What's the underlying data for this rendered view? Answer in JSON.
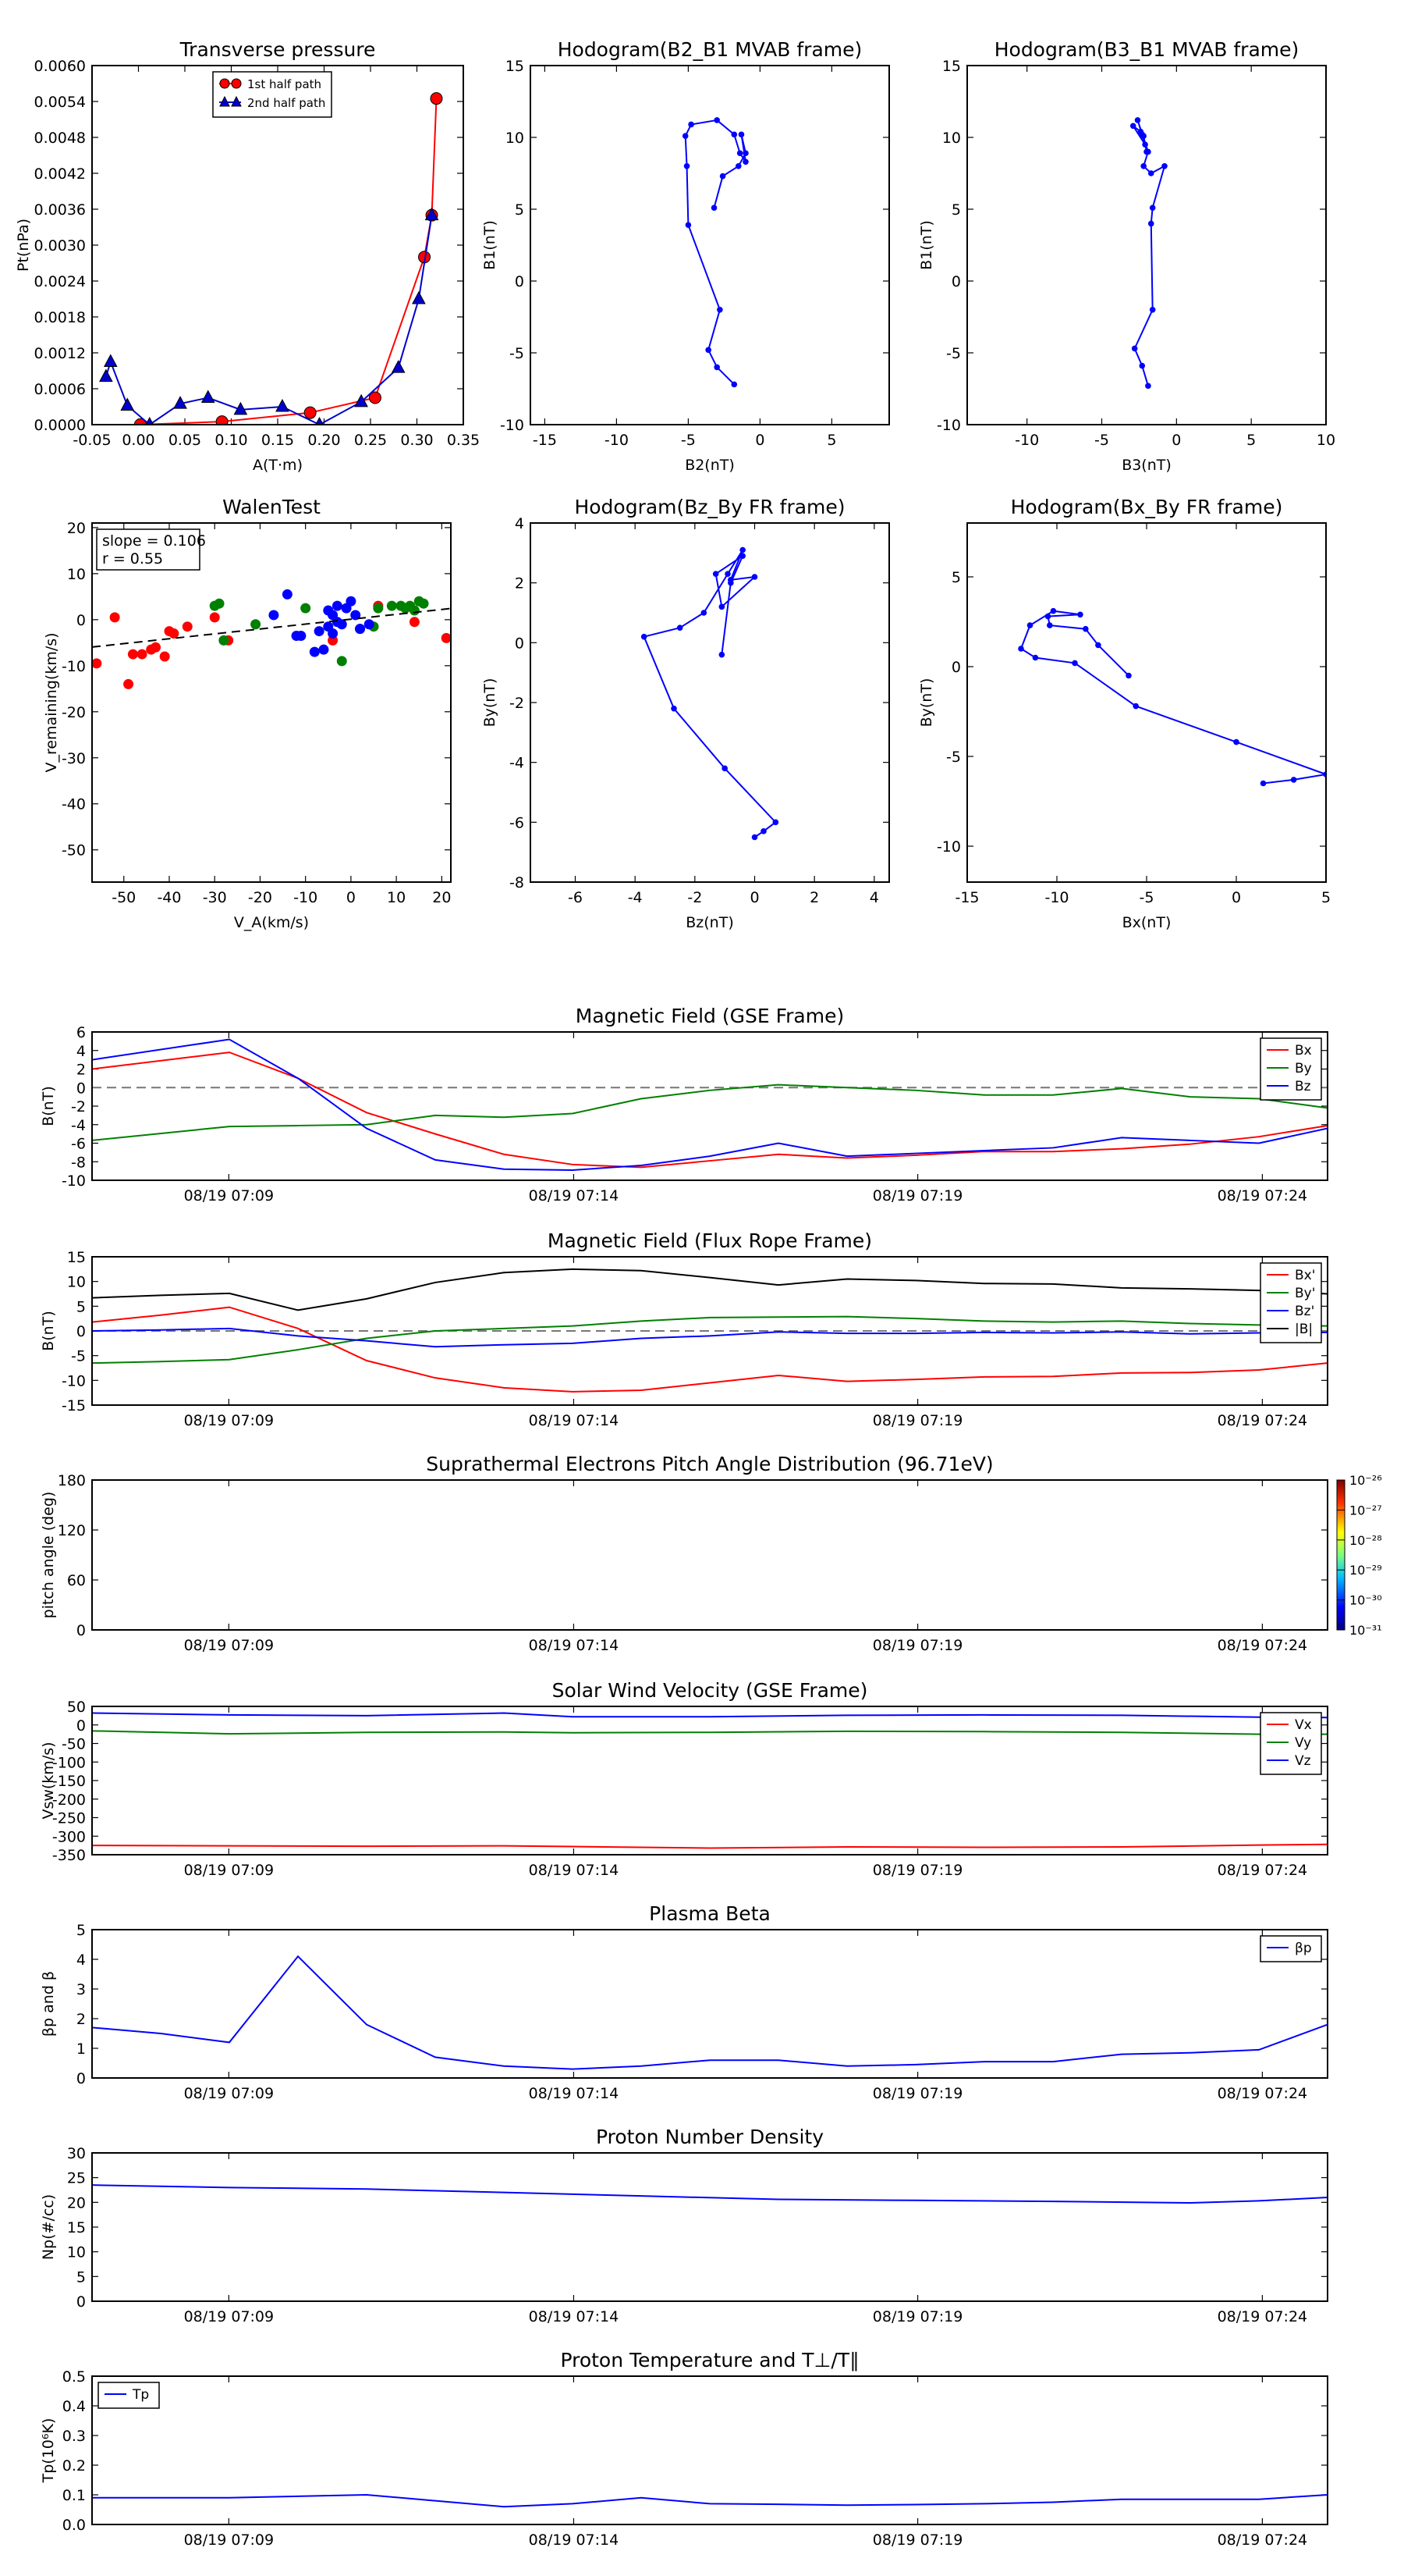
{
  "chart_data": [
    {
      "id": "tp",
      "type": "line",
      "title": "Transverse pressure",
      "xlabel": "A(T·m)",
      "ylabel": "Pt(nPa)",
      "xlim": [
        -0.05,
        0.35
      ],
      "ylim": [
        0,
        0.006
      ],
      "xticks": [
        "-0.05",
        "0.00",
        "0.05",
        "0.10",
        "0.15",
        "0.20",
        "0.25",
        "0.30",
        "0.35"
      ],
      "yticks": [
        "0.0000",
        "0.0006",
        "0.0012",
        "0.0018",
        "0.0024",
        "0.0030",
        "0.0036",
        "0.0042",
        "0.0048",
        "0.0054",
        "0.0060"
      ],
      "legend": "upper-center",
      "series": [
        {
          "name": "1st half path",
          "color": "#ff0000",
          "marker": "circle",
          "x": [
            0.002,
            0.09,
            0.185,
            0.255,
            0.308,
            0.316,
            0.321
          ],
          "y": [
            0.0,
            5e-05,
            0.0002,
            0.00045,
            0.0028,
            0.0035,
            0.00545
          ]
        },
        {
          "name": "2nd half path",
          "color": "#0000cc",
          "marker": "triangle",
          "x": [
            -0.035,
            -0.03,
            -0.012,
            0.012,
            0.045,
            0.075,
            0.11,
            0.155,
            0.195,
            0.24,
            0.28,
            0.302,
            0.316
          ],
          "y": [
            0.0008,
            0.00105,
            0.00032,
            0.0,
            0.00035,
            0.00045,
            0.00025,
            0.0003,
            0.0,
            0.00038,
            0.00095,
            0.0021,
            0.0035
          ]
        }
      ]
    },
    {
      "id": "h1",
      "type": "line",
      "title": "Hodogram(B2_B1 MVAB frame)",
      "xlabel": "B2(nT)",
      "ylabel": "B1(nT)",
      "xlim": [
        -16,
        9
      ],
      "ylim": [
        -10,
        15
      ],
      "xticks": [
        "-15",
        "-10",
        "-5",
        "0",
        "5"
      ],
      "yticks": [
        "-10",
        "-5",
        "0",
        "5",
        "10",
        "15"
      ],
      "series": [
        {
          "color": "#0000ff",
          "marker": "dot",
          "x": [
            -1.8,
            -3.0,
            -3.6,
            -2.8,
            -5.0,
            -5.1,
            -5.2,
            -4.8,
            -3.0,
            -1.8,
            -1.4,
            -1.0,
            -1.3,
            -1.0,
            -1.5,
            -2.6,
            -3.2
          ],
          "y": [
            -7.2,
            -6.0,
            -4.8,
            -2.0,
            3.9,
            8.0,
            10.1,
            10.9,
            11.2,
            10.2,
            8.9,
            8.3,
            10.2,
            8.9,
            8.0,
            7.3,
            5.1
          ]
        }
      ]
    },
    {
      "id": "h2",
      "type": "line",
      "title": "Hodogram(B3_B1 MVAB frame)",
      "xlabel": "B3(nT)",
      "ylabel": "B1(nT)",
      "xlim": [
        -14,
        10
      ],
      "ylim": [
        -10,
        15
      ],
      "xticks": [
        "-10",
        "-5",
        "0",
        "5",
        "10"
      ],
      "yticks": [
        "-10",
        "-5",
        "0",
        "5",
        "10",
        "15"
      ],
      "series": [
        {
          "color": "#0000ff",
          "marker": "dot",
          "x": [
            -1.9,
            -2.3,
            -2.8,
            -1.6,
            -1.7,
            -1.6,
            -0.8,
            -1.7,
            -2.2,
            -1.9,
            -2.6,
            -2.3,
            -2.1,
            -2.9,
            -2.4,
            -2.2,
            -2.0
          ],
          "y": [
            -7.3,
            -5.9,
            -4.7,
            -2.0,
            4.0,
            5.1,
            8.0,
            7.5,
            8.0,
            9.0,
            11.2,
            10.2,
            9.5,
            10.8,
            10.4,
            10.1,
            9.0
          ]
        }
      ]
    },
    {
      "id": "wt",
      "type": "scatter",
      "title": "WalenTest",
      "xlabel": "V_A(km/s)",
      "ylabel": "V_remaining(km/s)",
      "xlim": [
        -57,
        22
      ],
      "ylim": [
        -57,
        21
      ],
      "xticks": [
        "-50",
        "-40",
        "-30",
        "-20",
        "-10",
        "0",
        "10",
        "20"
      ],
      "yticks": [
        "-50",
        "-40",
        "-30",
        "-20",
        "-10",
        "0",
        "10",
        "20"
      ],
      "annotation": [
        "slope = 0.106",
        "r = 0.55"
      ],
      "fit": {
        "slope": 0.106,
        "intercept": 0.1
      },
      "series": [
        {
          "color": "#ff0000",
          "x": [
            -56,
            -52,
            -49,
            -48,
            -46,
            -44,
            -43,
            -41,
            -40,
            -39,
            -36,
            -30,
            -27,
            -4,
            6,
            14,
            21
          ],
          "y": [
            -9.5,
            0.5,
            -14,
            -7.5,
            -7.5,
            -6.5,
            -6,
            -8,
            -2.5,
            -3,
            -1.5,
            0.5,
            -4.5,
            -4.5,
            3,
            -0.5,
            -4
          ]
        },
        {
          "color": "#008000",
          "x": [
            -30,
            -29,
            -28,
            -21,
            -10,
            -2,
            2,
            5,
            6,
            9,
            11,
            12,
            13,
            14,
            15,
            16
          ],
          "y": [
            3,
            3.5,
            -4.5,
            -1,
            2.5,
            -9,
            -2,
            -1.5,
            2.5,
            3,
            3,
            2.5,
            3,
            2,
            4,
            3.5
          ]
        },
        {
          "color": "#0000ff",
          "x": [
            -17,
            -14,
            -12,
            -11,
            -8,
            -7,
            -6,
            -5,
            -5,
            -4,
            -4,
            -3,
            -3,
            -2,
            -1,
            0,
            1,
            2,
            4
          ],
          "y": [
            1,
            5.5,
            -3.5,
            -3.5,
            -7,
            -2.5,
            -6.5,
            2,
            -1.5,
            1,
            -3,
            3,
            -0.5,
            -1,
            2.5,
            4,
            1,
            -2,
            -1
          ]
        }
      ]
    },
    {
      "id": "h3",
      "type": "line",
      "title": "Hodogram(Bz_By FR frame)",
      "xlabel": "Bz(nT)",
      "ylabel": "By(nT)",
      "xlim": [
        -7.5,
        4.5
      ],
      "ylim": [
        -8,
        4
      ],
      "xticks": [
        "-6",
        "-4",
        "-2",
        "0",
        "2",
        "4"
      ],
      "yticks": [
        "-8",
        "-6",
        "-4",
        "-2",
        "0",
        "2",
        "4"
      ],
      "series": [
        {
          "color": "#0000ff",
          "marker": "dot",
          "x": [
            0.0,
            0.3,
            0.7,
            -1.0,
            -2.7,
            -3.7,
            -2.5,
            -1.7,
            -0.9,
            -0.4,
            -0.8,
            0.0,
            -1.1,
            -1.3,
            -0.4,
            -0.8,
            -1.1
          ],
          "y": [
            -6.5,
            -6.3,
            -6.0,
            -4.2,
            -2.2,
            0.2,
            0.5,
            1.0,
            2.3,
            3.1,
            2.1,
            2.2,
            1.2,
            2.3,
            2.9,
            2.0,
            -0.4
          ]
        }
      ]
    },
    {
      "id": "h4",
      "type": "line",
      "title": "Hodogram(Bx_By FR frame)",
      "xlabel": "Bx(nT)",
      "ylabel": "By(nT)",
      "xlim": [
        -15,
        5
      ],
      "ylim": [
        -12,
        8
      ],
      "xticks": [
        "-15",
        "-10",
        "-5",
        "0",
        "5"
      ],
      "yticks": [
        "-10",
        "-5",
        "0",
        "5"
      ],
      "series": [
        {
          "color": "#0000ff",
          "marker": "dot",
          "x": [
            1.5,
            3.2,
            5.0,
            0.0,
            -5.6,
            -9.0,
            -11.2,
            -12.0,
            -11.5,
            -10.2,
            -8.7,
            -10.5,
            -10.4,
            -8.4,
            -7.7,
            -6.0
          ],
          "y": [
            -6.5,
            -6.3,
            -6.0,
            -4.2,
            -2.2,
            0.2,
            0.5,
            1.0,
            2.3,
            3.1,
            2.9,
            2.8,
            2.3,
            2.1,
            1.2,
            -0.5
          ]
        }
      ]
    },
    {
      "id": "mf",
      "type": "line",
      "title": "Magnetic Field (GSE Frame)",
      "ylabel": "B(nT)",
      "xlim": [
        0,
        18
      ],
      "ylim": [
        -10,
        6
      ],
      "zero_line": true,
      "xticks": [
        "08/19 07:09",
        "08/19 07:14",
        "08/19 07:19",
        "08/19 07:24"
      ],
      "yticks": [
        "-10",
        "-8",
        "-6",
        "-4",
        "-2",
        "0",
        "2",
        "4",
        "6"
      ],
      "legend": "upper-right",
      "x": [
        0,
        2,
        3,
        4,
        5,
        6,
        7,
        8,
        9,
        10,
        11,
        12,
        13,
        14,
        15,
        16,
        17,
        18
      ],
      "series": [
        {
          "name": "Bx",
          "color": "#ff0000",
          "values": [
            2,
            3.8,
            1,
            -2.7,
            -5,
            -7.2,
            -8.3,
            -8.6,
            -7.9,
            -7.2,
            -7.6,
            -7.3,
            -6.9,
            -6.9,
            -6.6,
            -6.1,
            -5.3,
            -4.1
          ]
        },
        {
          "name": "By",
          "color": "#008000",
          "values": [
            -5.7,
            -4.2,
            -4.1,
            -4,
            -3,
            -3.2,
            -2.8,
            -1.2,
            -0.3,
            0.3,
            0,
            -0.3,
            -0.8,
            -0.8,
            -0.1,
            -1,
            -1.2,
            -2.2
          ]
        },
        {
          "name": "Bz",
          "color": "#0000ff",
          "values": [
            3,
            5.2,
            1,
            -4.4,
            -7.8,
            -8.8,
            -8.9,
            -8.4,
            -7.4,
            -6,
            -7.4,
            -7.1,
            -6.8,
            -6.5,
            -5.4,
            -5.7,
            -6,
            -4.4
          ]
        }
      ]
    },
    {
      "id": "mfr",
      "type": "line",
      "title": "Magnetic Field (Flux Rope Frame)",
      "ylabel": "B(nT)",
      "xlim": [
        0,
        18
      ],
      "ylim": [
        -15,
        15
      ],
      "zero_line": true,
      "xticks": [
        "08/19 07:09",
        "08/19 07:14",
        "08/19 07:19",
        "08/19 07:24"
      ],
      "yticks": [
        "-15",
        "-10",
        "-5",
        "0",
        "5",
        "10",
        "15"
      ],
      "legend": "upper-right",
      "x": [
        0,
        1,
        2,
        3,
        4,
        5,
        6,
        7,
        8,
        9,
        10,
        11,
        12,
        13,
        14,
        15,
        16,
        17,
        18
      ],
      "series": [
        {
          "name": "Bx'",
          "color": "#ff0000",
          "values": [
            1.8,
            3.2,
            4.8,
            0.5,
            -6,
            -9.5,
            -11.5,
            -12.3,
            -12,
            -10.5,
            -9,
            -10.2,
            -9.8,
            -9.3,
            -9.2,
            -8.5,
            -8.4,
            -7.9,
            -6.5
          ]
        },
        {
          "name": "By'",
          "color": "#008000",
          "values": [
            -6.5,
            -6.2,
            -5.8,
            -3.8,
            -1.5,
            0,
            0.5,
            1,
            2,
            2.7,
            2.8,
            2.9,
            2.5,
            2,
            1.8,
            2,
            1.5,
            1.2,
            1
          ]
        },
        {
          "name": "Bz'",
          "color": "#0000ff",
          "values": [
            0,
            0.2,
            0.5,
            -1,
            -2,
            -3.2,
            -2.8,
            -2.5,
            -1.5,
            -1,
            -0.2,
            -0.5,
            -0.5,
            -0.3,
            -0.4,
            -0.2,
            -0.6,
            -0.4,
            -0.3
          ]
        },
        {
          "name": "|B|",
          "color": "#000000",
          "values": [
            6.7,
            7.2,
            7.6,
            4.2,
            6.5,
            9.8,
            11.8,
            12.5,
            12.2,
            10.8,
            9.3,
            10.5,
            10.2,
            9.6,
            9.5,
            8.7,
            8.5,
            8.2,
            7.5
          ]
        }
      ]
    },
    {
      "id": "pad",
      "type": "heatmap",
      "title": "Suprathermal Electrons Pitch Angle Distribution (96.71eV)",
      "ylabel": "pitch angle (deg)",
      "ylim": [
        0,
        180
      ],
      "xticks": [
        "08/19 07:09",
        "08/19 07:14",
        "08/19 07:19",
        "08/19 07:24"
      ],
      "yticks": [
        "0",
        "60",
        "120",
        "180"
      ],
      "colorbar_labels": [
        "10⁻²⁶",
        "10⁻²⁷",
        "10⁻²⁸",
        "10⁻²⁹",
        "10⁻³⁰",
        "10⁻³¹"
      ]
    },
    {
      "id": "sw",
      "type": "line",
      "title": "Solar Wind Velocity (GSE Frame)",
      "ylabel": "Vsw(km/s)",
      "xlim": [
        0,
        18
      ],
      "ylim": [
        -350,
        50
      ],
      "xticks": [
        "08/19 07:09",
        "08/19 07:14",
        "08/19 07:19",
        "08/19 07:24"
      ],
      "yticks": [
        "-350",
        "-300",
        "-250",
        "-200",
        "-150",
        "-100",
        "-50",
        "0",
        "50"
      ],
      "legend": "upper-right",
      "x": [
        0,
        2,
        4,
        6,
        7,
        9,
        11,
        13,
        15,
        17,
        18
      ],
      "series": [
        {
          "name": "Vx",
          "color": "#ff0000",
          "values": [
            -325,
            -326,
            -327,
            -326,
            -328,
            -332,
            -329,
            -330,
            -329,
            -324,
            -322
          ]
        },
        {
          "name": "Vy",
          "color": "#008000",
          "values": [
            -16,
            -24,
            -20,
            -19,
            -21,
            -20,
            -17,
            -18,
            -20,
            -25,
            -25
          ]
        },
        {
          "name": "Vz",
          "color": "#0000ff",
          "values": [
            32,
            27,
            25,
            32,
            22,
            22,
            26,
            27,
            26,
            21,
            20
          ]
        }
      ]
    },
    {
      "id": "pb",
      "type": "line",
      "title": "Plasma Beta",
      "ylabel": "βp and β",
      "xlim": [
        0,
        18
      ],
      "ylim": [
        0,
        5
      ],
      "xticks": [
        "08/19 07:09",
        "08/19 07:14",
        "08/19 07:19",
        "08/19 07:24"
      ],
      "yticks": [
        "0",
        "1",
        "2",
        "3",
        "4",
        "5"
      ],
      "legend": "upper-right",
      "x": [
        0,
        1,
        2,
        3,
        4,
        5,
        6,
        7,
        8,
        9,
        10,
        11,
        12,
        13,
        14,
        15,
        16,
        17,
        18
      ],
      "series": [
        {
          "name": "βp",
          "color": "#0000ff",
          "values": [
            1.7,
            1.5,
            1.2,
            4.1,
            1.8,
            0.7,
            0.4,
            0.3,
            0.4,
            0.6,
            0.6,
            0.4,
            0.45,
            0.55,
            0.55,
            0.8,
            0.85,
            0.95,
            1.8
          ]
        }
      ]
    },
    {
      "id": "np",
      "type": "line",
      "title": "Proton Number Density",
      "ylabel": "Np(#/cc)",
      "xlim": [
        0,
        18
      ],
      "ylim": [
        0,
        30
      ],
      "xticks": [
        "08/19 07:09",
        "08/19 07:14",
        "08/19 07:19",
        "08/19 07:24"
      ],
      "yticks": [
        "0",
        "5",
        "10",
        "15",
        "20",
        "25",
        "30"
      ],
      "x": [
        0,
        2,
        4,
        6,
        8,
        10,
        12,
        14,
        16,
        17,
        18
      ],
      "series": [
        {
          "color": "#0000ff",
          "values": [
            23.5,
            23,
            22.7,
            22,
            21.3,
            20.6,
            20.4,
            20.2,
            19.9,
            20.3,
            21
          ]
        }
      ]
    },
    {
      "id": "tpp",
      "type": "line",
      "title": "Proton Temperature and T⊥/T∥",
      "ylabel": "Tp(10⁶K)",
      "xlim": [
        0,
        18
      ],
      "ylim": [
        0,
        0.5
      ],
      "xticks": [
        "08/19 07:09",
        "08/19 07:14",
        "08/19 07:19",
        "08/19 07:24"
      ],
      "yticks": [
        "0.0",
        "0.1",
        "0.2",
        "0.3",
        "0.4",
        "0.5"
      ],
      "legend": "upper-left",
      "x": [
        0,
        2,
        4,
        5,
        6,
        7,
        8,
        9,
        10,
        11,
        12,
        13,
        14,
        15,
        16,
        17,
        18
      ],
      "series": [
        {
          "name": "Tp",
          "color": "#0000ff",
          "values": [
            0.09,
            0.09,
            0.1,
            0.08,
            0.06,
            0.07,
            0.09,
            0.07,
            0.068,
            0.065,
            0.067,
            0.07,
            0.075,
            0.085,
            0.085,
            0.085,
            0.1
          ]
        }
      ]
    }
  ]
}
